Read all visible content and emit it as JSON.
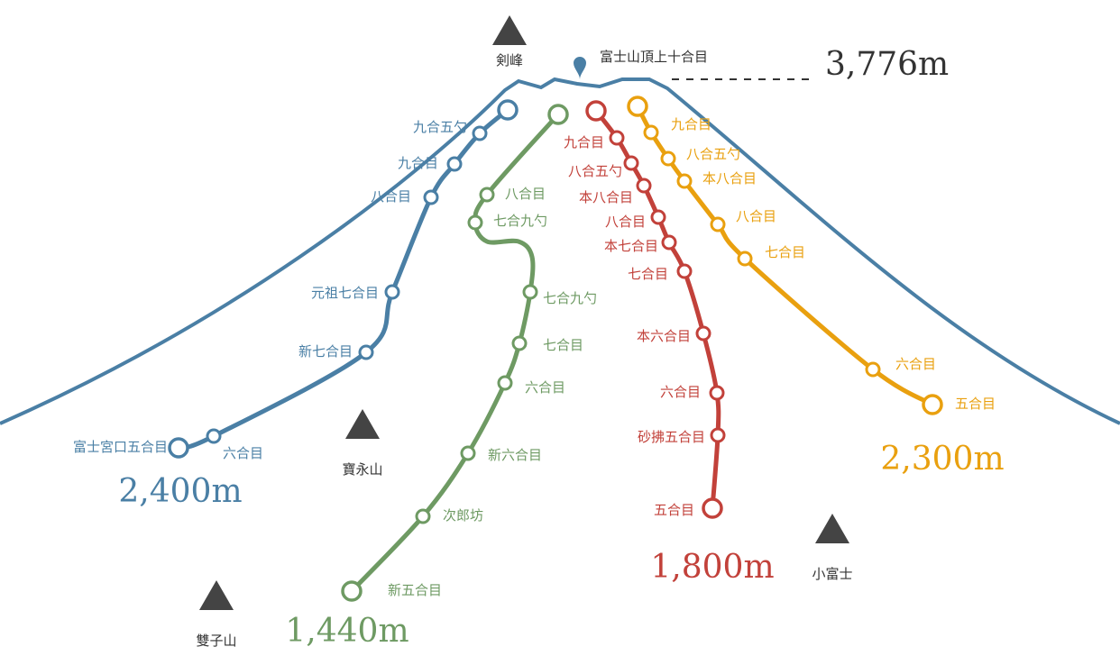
{
  "summit": {
    "label": "富士山頂上十合目",
    "elevation": "3,776m"
  },
  "peaks": [
    "剣峰",
    "寶永山",
    "雙子山",
    "小富士"
  ],
  "trails": [
    {
      "stations": [
        "富士宮口五合目",
        "六合目",
        "新七合目",
        "元祖七合目",
        "八合目",
        "九合目",
        "九合五勺"
      ],
      "elevation": "2,400m"
    },
    {
      "stations": [
        "新五合目",
        "次郎坊",
        "新六合目",
        "六合目",
        "七合目",
        "七合九勺",
        "七合九勺",
        "八合目"
      ],
      "elevation": "1,440m"
    },
    {
      "stations": [
        "五合目",
        "砂拂五合目",
        "六合目",
        "本六合目",
        "七合目",
        "本七合目",
        "八合目",
        "本八合目",
        "八合五勺",
        "九合目"
      ],
      "elevation": "1,800m"
    },
    {
      "stations": [
        "五合目",
        "六合目",
        "七合目",
        "八合目",
        "本八合目",
        "八合五勺",
        "九合目"
      ],
      "elevation": "2,300m"
    }
  ]
}
